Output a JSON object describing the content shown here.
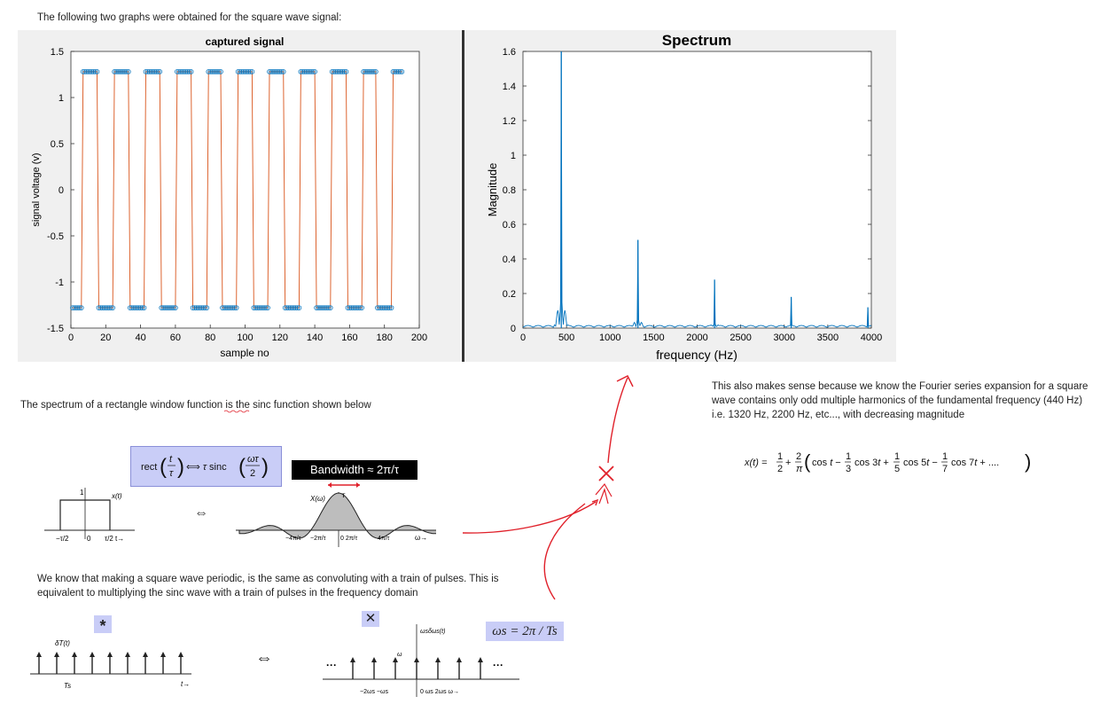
{
  "intro_text": "The following two graphs were obtained for the square wave signal:",
  "left_plot": {
    "title": "captured signal",
    "xlabel": "sample no",
    "ylabel": "signal voltage (v)",
    "xticks": [
      "0",
      "20",
      "40",
      "60",
      "80",
      "100",
      "120",
      "140",
      "160",
      "180",
      "200"
    ],
    "yticks": [
      "1.5",
      "1",
      "0.5",
      "0",
      "-0.5",
      "-1",
      "-1.5"
    ],
    "line_color": "#d95319",
    "marker_color": "#0072bd"
  },
  "right_plot": {
    "title": "Spectrum",
    "xlabel": "frequency (Hz)",
    "ylabel": "Magnitude",
    "xticks": [
      "0",
      "500",
      "1000",
      "1500",
      "2000",
      "2500",
      "3000",
      "3500",
      "4000"
    ],
    "yticks": [
      "1.6",
      "1.4",
      "1.2",
      "1",
      "0.8",
      "0.6",
      "0.4",
      "0.2",
      "0"
    ],
    "line_color": "#0072bd"
  },
  "chart_data": [
    {
      "type": "line",
      "title": "captured signal",
      "xlabel": "sample no",
      "ylabel": "signal voltage (v)",
      "xlim": [
        0,
        200
      ],
      "ylim": [
        -1.5,
        1.5
      ],
      "series": [
        {
          "high": 1.28,
          "low": -1.28,
          "period_samples": 17.8,
          "start_low": true
        }
      ]
    },
    {
      "type": "line",
      "title": "Spectrum",
      "xlabel": "frequency (Hz)",
      "ylabel": "Magnitude",
      "xlim": [
        0,
        4000
      ],
      "ylim": [
        0,
        1.6
      ],
      "peaks": [
        {
          "x": 440,
          "y": 1.6
        },
        {
          "x": 1320,
          "y": 0.51
        },
        {
          "x": 2200,
          "y": 0.28
        },
        {
          "x": 3080,
          "y": 0.18
        },
        {
          "x": 3960,
          "y": 0.12
        }
      ]
    }
  ],
  "fourier_note": "This also makes sense because we know the Fourier series expansion for a square wave contains only odd multiple harmonics of the fundamental frequency (440 Hz) i.e. 1320 Hz, 2200 Hz, etc..., with decreasing magnitude",
  "sinc_text": "The spectrum of a rectangle window function is the sinc function shown below",
  "bandwidth_label": "Bandwidth ≈ 2π/τ",
  "convolution_text": "We know that making a square wave periodic, is the same as convoluting with a train of pulses. This is equivalent to multiplying the sinc wave with a train of pulses in the frequency domain",
  "star_symbol": "*",
  "times_symbol": "✕",
  "omega_s_formula": "ωs = 2π / Ts",
  "colors": {
    "annotation_red": "#e0202a",
    "highlight": "#c9cdf7"
  }
}
